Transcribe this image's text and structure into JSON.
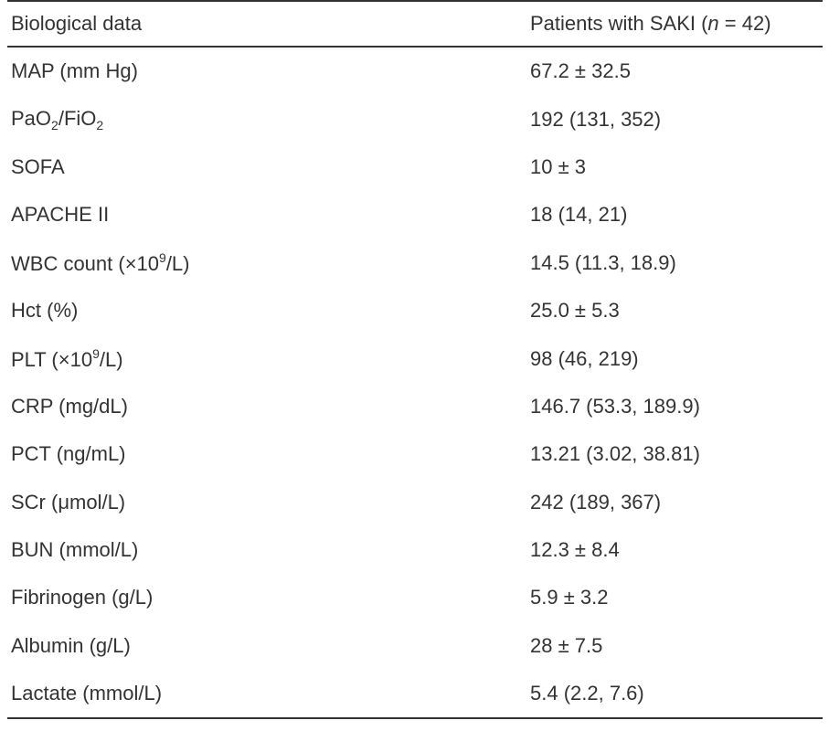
{
  "header": {
    "col1": "Biological data",
    "col2_prefix": "Patients with SAKI (",
    "col2_n": "n",
    "col2_suffix": " = 42)"
  },
  "rows": [
    {
      "label": "MAP (mm Hg)",
      "value": "67.2 ± 32.5"
    },
    {
      "label_pre": "PaO",
      "label_sub1": "2",
      "label_mid": "/FiO",
      "label_sub2": "2",
      "value": "192 (131, 352)"
    },
    {
      "label": "SOFA",
      "value": "10 ± 3"
    },
    {
      "label": "APACHE II",
      "value": "18 (14, 21)"
    },
    {
      "label_pre": "WBC count (×10",
      "label_sup": "9",
      "label_post": "/L)",
      "value": "14.5 (11.3, 18.9)"
    },
    {
      "label": "Hct (%)",
      "value": "25.0 ± 5.3"
    },
    {
      "label_pre": "PLT (×10",
      "label_sup": "9",
      "label_post": "/L)",
      "value": "98 (46, 219)"
    },
    {
      "label": "CRP (mg/dL)",
      "value": "146.7 (53.3, 189.9)"
    },
    {
      "label": "PCT (ng/mL)",
      "value": "13.21 (3.02, 38.81)"
    },
    {
      "label": "SCr (μmol/L)",
      "value": "242 (189, 367)"
    },
    {
      "label": "BUN (mmol/L)",
      "value": "12.3 ± 8.4"
    },
    {
      "label": "Fibrinogen (g/L)",
      "value": "5.9 ± 3.2"
    },
    {
      "label": "Albumin (g/L)",
      "value": "28 ± 7.5"
    },
    {
      "label": "Lactate (mmol/L)",
      "value": "5.4 (2.2, 7.6)"
    }
  ]
}
